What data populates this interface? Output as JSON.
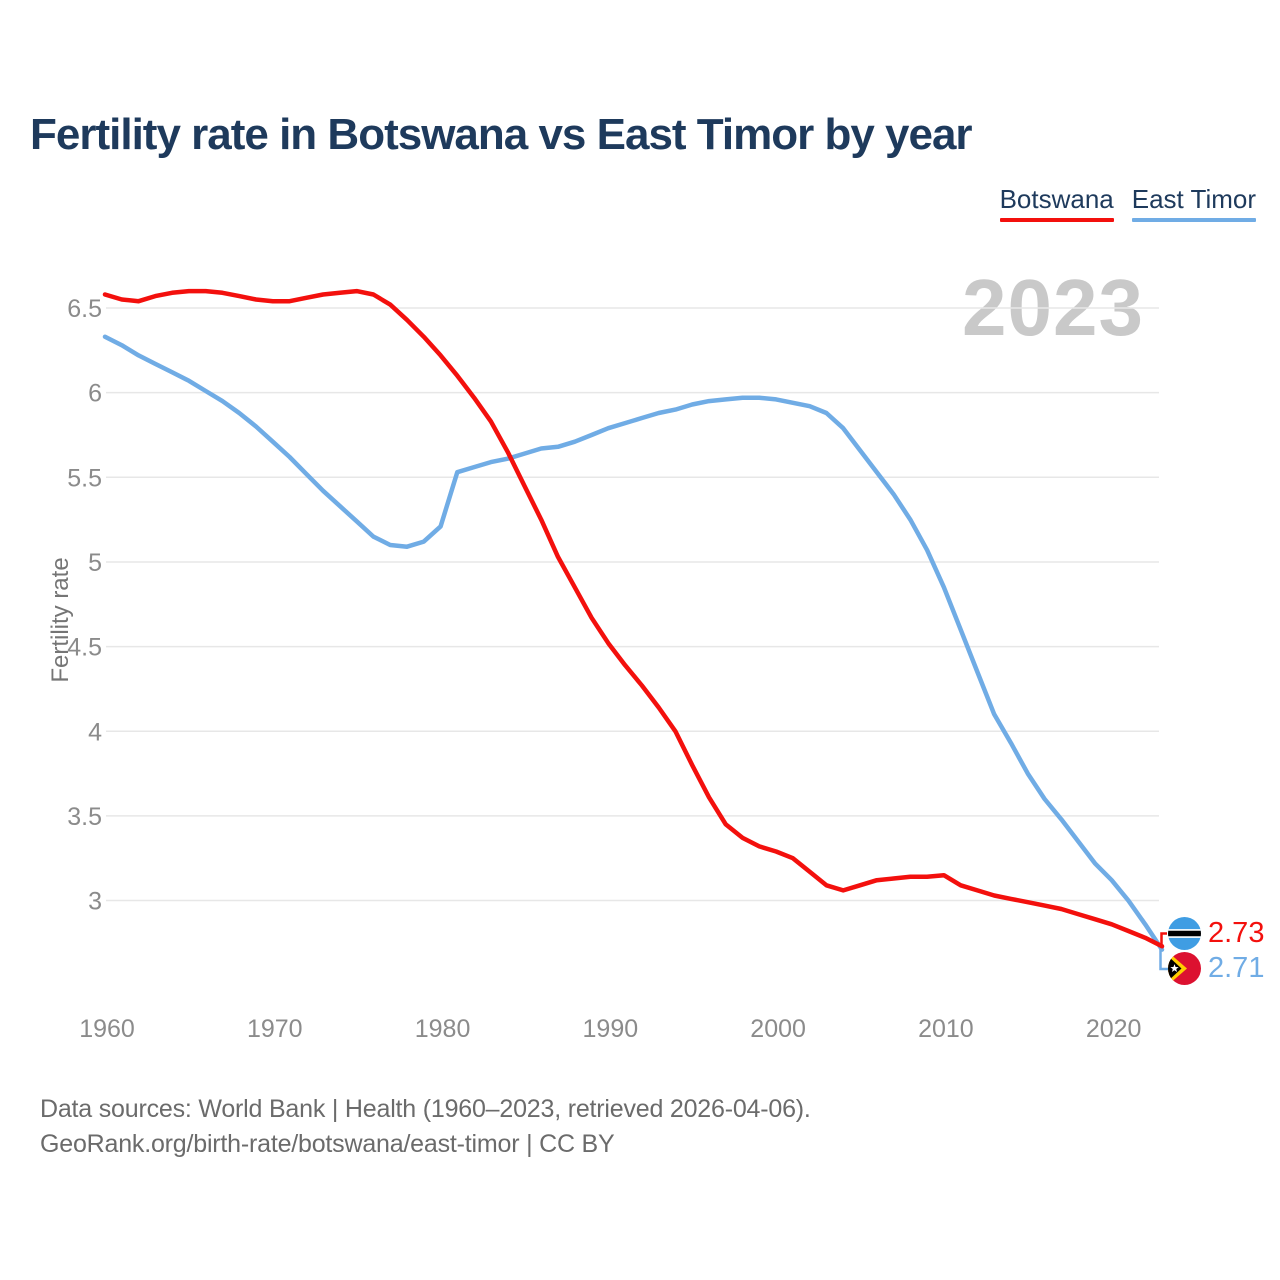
{
  "title": "Fertility rate in Botswana vs East Timor by year",
  "watermark": "2023",
  "colors": {
    "title_navy": "#1e3a5c",
    "botswana_red": "#f3100d",
    "east_timor_blue": "#70ace5",
    "grid": "#e7e7e7",
    "tick_gray": "#8b8b8b",
    "axis_label_gray": "#757575",
    "footer_gray": "#6b6b6b",
    "watermark_gray": "#c9c9c9",
    "botswana_flag_blue": "#3f9de3",
    "east_timor_flag_red": "#dc1130",
    "east_timor_flag_yellow": "#ffce00"
  },
  "legend": {
    "items": [
      {
        "label": "Botswana",
        "color": "#f3100d"
      },
      {
        "label": "East Timor",
        "color": "#70ace5"
      }
    ]
  },
  "y_axis": {
    "label": "Fertility rate",
    "tick_labels": [
      "6.5",
      "6",
      "5.5",
      "5",
      "4.5",
      "4",
      "3.5",
      "3"
    ]
  },
  "x_axis": {
    "tick_labels": [
      1960,
      1970,
      1980,
      1990,
      2000,
      2010,
      2020
    ]
  },
  "end_labels": [
    {
      "series": "Botswana",
      "value": "2.73"
    },
    {
      "series": "East Timor",
      "value": "2.71"
    }
  ],
  "footer": {
    "line1": "Data sources: World Bank | Health (1960–2023, retrieved 2026-04-06).",
    "line2": "GeoRank.org/birth-rate/botswana/east-timor | CC BY"
  },
  "chart_data": {
    "type": "line",
    "title": "Fertility rate in Botswana vs East Timor by year",
    "xlabel": "",
    "ylabel": "Fertility rate",
    "x_range": [
      1960,
      2023
    ],
    "ylim": [
      2.6,
      6.75
    ],
    "grid": "horizontal",
    "legend_position": "top-right",
    "x": [
      1960,
      1961,
      1962,
      1963,
      1964,
      1965,
      1966,
      1967,
      1968,
      1969,
      1970,
      1971,
      1972,
      1973,
      1974,
      1975,
      1976,
      1977,
      1978,
      1979,
      1980,
      1981,
      1982,
      1983,
      1984,
      1985,
      1986,
      1987,
      1988,
      1989,
      1990,
      1991,
      1992,
      1993,
      1994,
      1995,
      1996,
      1997,
      1998,
      1999,
      2000,
      2001,
      2002,
      2003,
      2004,
      2005,
      2006,
      2007,
      2008,
      2009,
      2010,
      2011,
      2012,
      2013,
      2014,
      2015,
      2016,
      2017,
      2018,
      2019,
      2020,
      2021,
      2022,
      2023
    ],
    "series": [
      {
        "name": "Botswana",
        "color": "#f3100d",
        "end_value": 2.73,
        "values": [
          6.58,
          6.55,
          6.54,
          6.57,
          6.59,
          6.6,
          6.6,
          6.59,
          6.57,
          6.55,
          6.54,
          6.54,
          6.56,
          6.58,
          6.59,
          6.6,
          6.58,
          6.52,
          6.43,
          6.33,
          6.22,
          6.1,
          5.97,
          5.83,
          5.65,
          5.45,
          5.25,
          5.03,
          4.85,
          4.67,
          4.52,
          4.39,
          4.27,
          4.14,
          4.0,
          3.8,
          3.61,
          3.45,
          3.37,
          3.32,
          3.29,
          3.25,
          3.17,
          3.09,
          3.06,
          3.09,
          3.12,
          3.13,
          3.14,
          3.14,
          3.15,
          3.09,
          3.06,
          3.03,
          3.01,
          2.99,
          2.97,
          2.95,
          2.92,
          2.89,
          2.86,
          2.82,
          2.78,
          2.73
        ]
      },
      {
        "name": "East Timor",
        "color": "#70ace5",
        "end_value": 2.71,
        "values": [
          6.33,
          6.28,
          6.22,
          6.17,
          6.12,
          6.07,
          6.01,
          5.95,
          5.88,
          5.8,
          5.71,
          5.62,
          5.52,
          5.42,
          5.33,
          5.24,
          5.15,
          5.1,
          5.09,
          5.12,
          5.21,
          5.53,
          5.56,
          5.59,
          5.61,
          5.64,
          5.67,
          5.68,
          5.71,
          5.75,
          5.79,
          5.82,
          5.85,
          5.88,
          5.9,
          5.93,
          5.95,
          5.96,
          5.97,
          5.97,
          5.96,
          5.94,
          5.92,
          5.88,
          5.79,
          5.66,
          5.53,
          5.4,
          5.25,
          5.07,
          4.85,
          4.6,
          4.35,
          4.1,
          3.93,
          3.75,
          3.6,
          3.48,
          3.35,
          3.22,
          3.12,
          3.0,
          2.86,
          2.71
        ]
      }
    ]
  }
}
